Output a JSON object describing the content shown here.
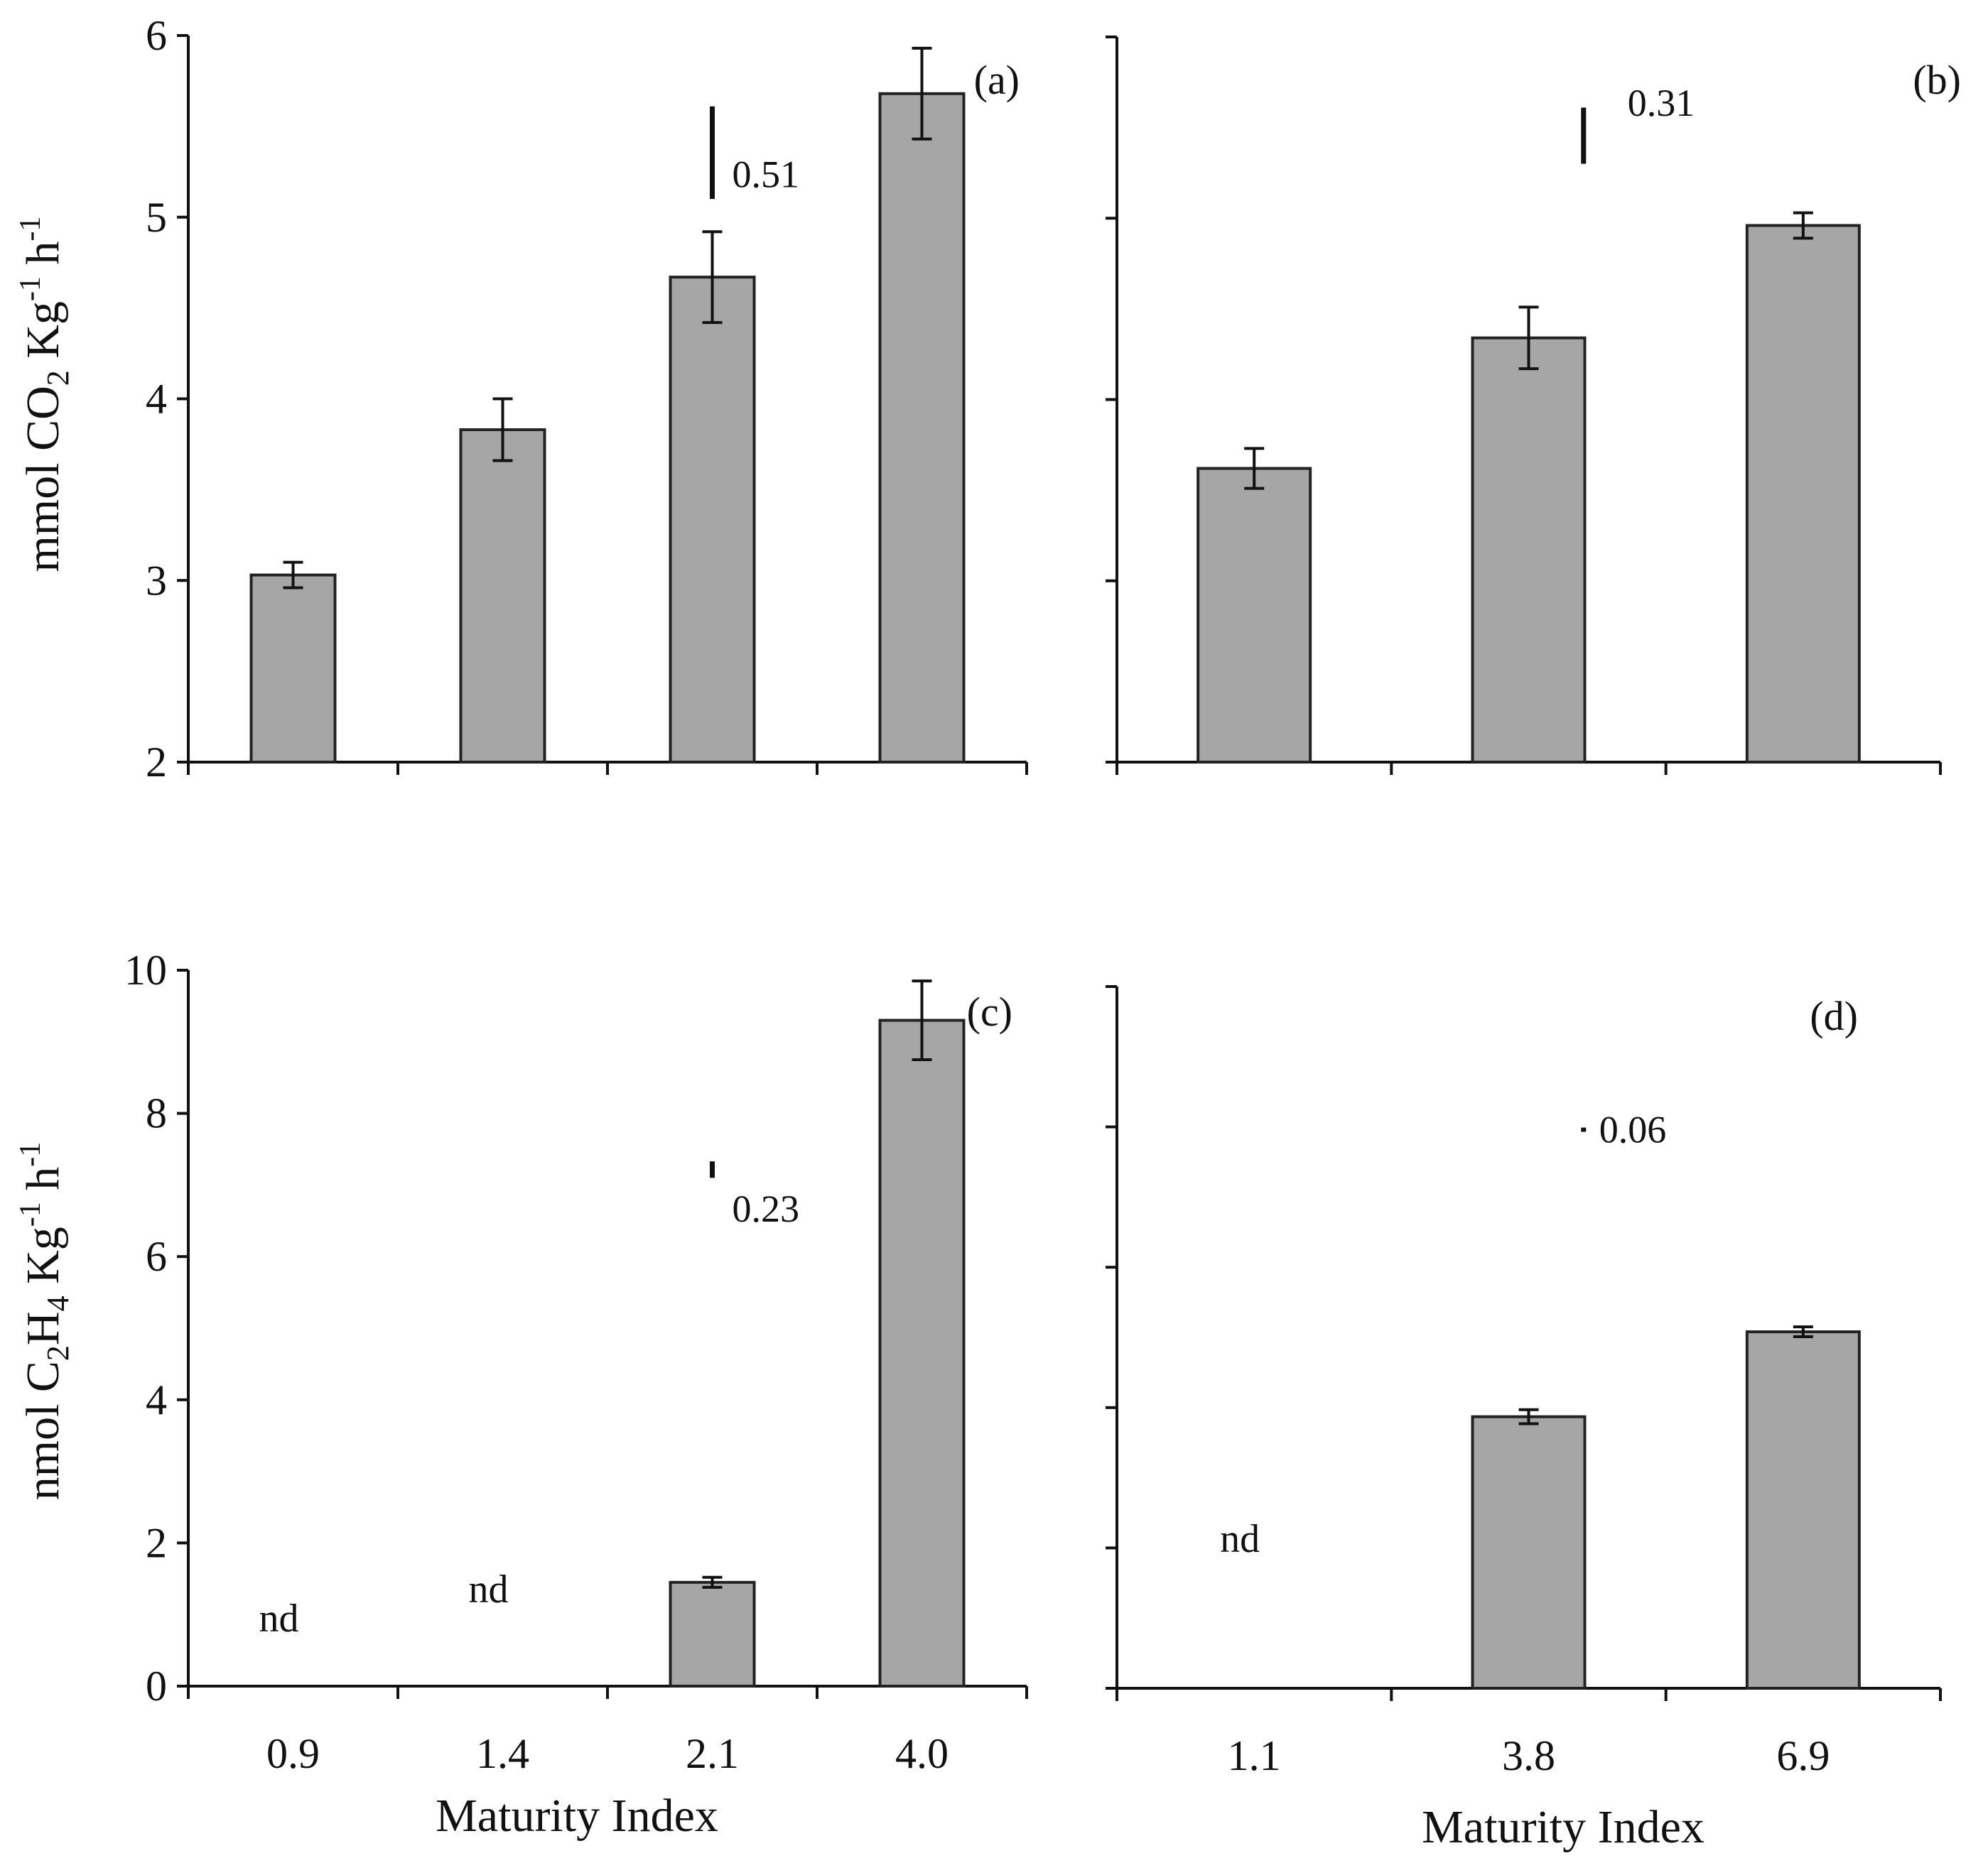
{
  "colors": {
    "bar_fill": "#a6a6a6",
    "bar_stroke": "#222222",
    "axis": "#111111",
    "background": "#ffffff"
  },
  "xaxis_title": "Maturity Index",
  "chart_data": [
    {
      "panel": "a",
      "panel_label": "(a)",
      "type": "bar",
      "categories": [
        "0.9",
        "1.4",
        "2.1",
        "4.0"
      ],
      "values": [
        3.03,
        3.83,
        4.67,
        5.68
      ],
      "errors": [
        0.07,
        0.17,
        0.25,
        0.25
      ],
      "not_detected": [
        false,
        false,
        false,
        false
      ],
      "ylabel": {
        "prefix": "mmol CO",
        "sub": "2",
        "mid": " Kg",
        "sup1": "-1",
        "mid2": " h",
        "sup2": "-1"
      },
      "ylim": [
        2,
        6
      ],
      "yticks": [
        2,
        3,
        4,
        5,
        6
      ],
      "ytick_labels": [
        "2",
        "3",
        "4",
        "5",
        "6"
      ],
      "lsd": {
        "value": 0.51,
        "label": "0.51",
        "bar_bottom": 5.1,
        "category_pos": 2.5
      },
      "show_xtick_labels": false
    },
    {
      "panel": "b",
      "panel_label": "(b)",
      "type": "bar",
      "categories": [
        "1.1",
        "3.8",
        "6.9"
      ],
      "values": [
        3.62,
        4.34,
        4.96
      ],
      "errors": [
        0.11,
        0.17,
        0.07
      ],
      "not_detected": [
        false,
        false,
        false
      ],
      "ylim": [
        2,
        6
      ],
      "yticks": [
        2,
        3,
        4,
        5,
        6
      ],
      "ytick_labels": [],
      "lsd": {
        "value": 0.31,
        "label": "0.31",
        "bar_bottom": 5.3,
        "category_pos": 1.7
      },
      "show_xtick_labels": false
    },
    {
      "panel": "c",
      "panel_label": "(c)",
      "type": "bar",
      "categories": [
        "0.9",
        "1.4",
        "2.1",
        "4.0"
      ],
      "values": [
        0,
        0,
        1.45,
        9.3
      ],
      "errors": [
        0,
        0,
        0.07,
        0.55
      ],
      "not_detected": [
        true,
        true,
        false,
        false
      ],
      "nd_label": "nd",
      "ylabel": {
        "prefix": "nmol C",
        "sub": "2",
        "mid": "H",
        "sub2": "4",
        "mid2": " Kg",
        "sup1": "-1",
        "mid3": " h",
        "sup2": "-1"
      },
      "ylim": [
        0,
        10
      ],
      "yticks": [
        0,
        2,
        4,
        6,
        8,
        10
      ],
      "ytick_labels": [
        "0",
        "2",
        "4",
        "6",
        "8",
        "10"
      ],
      "lsd": {
        "value": 0.23,
        "label": "0.23",
        "bar_bottom": 7.1,
        "category_pos": 2.5
      },
      "show_xtick_labels": true
    },
    {
      "panel": "d",
      "panel_label": "(d)",
      "type": "bar",
      "categories": [
        "1.1",
        "3.8",
        "6.9"
      ],
      "values": [
        0,
        3.87,
        5.08
      ],
      "errors": [
        0,
        0.1,
        0.07
      ],
      "not_detected": [
        true,
        false,
        false
      ],
      "nd_label": "nd",
      "ylim": [
        0,
        10
      ],
      "yticks": [
        0,
        2,
        4,
        6,
        8,
        10
      ],
      "ytick_labels": [],
      "lsd": {
        "value": 0.06,
        "label": "0.06",
        "bar_bottom": 7.93,
        "category_pos": 1.7
      },
      "show_xtick_labels": true
    }
  ]
}
